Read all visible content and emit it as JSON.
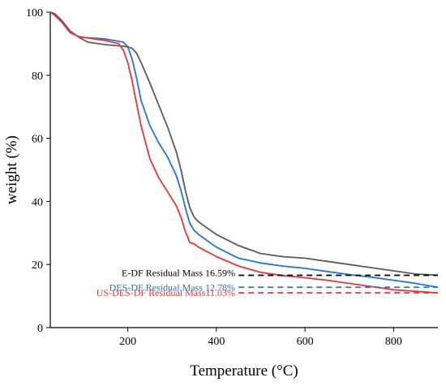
{
  "chart_data": {
    "type": "line",
    "xlabel": "Temperature (°C)",
    "ylabel": "weight (%)",
    "xlim": [
      25,
      900
    ],
    "ylim": [
      0,
      100
    ],
    "x_ticks": [
      200,
      400,
      600,
      800
    ],
    "y_ticks": [
      0,
      20,
      40,
      60,
      80,
      100
    ],
    "grid": false,
    "series": [
      {
        "color": "#5a5a5a",
        "x": [
          25,
          35,
          50,
          70,
          90,
          110,
          150,
          190,
          200,
          210,
          220,
          230,
          250,
          270,
          290,
          310,
          320,
          330,
          340,
          350,
          360,
          380,
          400,
          450,
          500,
          550,
          600,
          650,
          700,
          750,
          800,
          850,
          900
        ],
        "y": [
          100,
          99.5,
          97.5,
          94,
          92,
          90.5,
          89.7,
          89.2,
          89.0,
          88.5,
          87.0,
          84.0,
          77.5,
          70.5,
          63.5,
          55.5,
          50.0,
          43.5,
          38.0,
          35.0,
          33.5,
          31.5,
          29.5,
          26.0,
          23.5,
          22.5,
          22.0,
          21.0,
          20.0,
          19.0,
          18.0,
          17.0,
          16.6
        ]
      },
      {
        "color": "#1f74dc",
        "x": [
          25,
          35,
          50,
          70,
          90,
          100,
          150,
          190,
          200,
          210,
          220,
          230,
          250,
          270,
          290,
          310,
          320,
          330,
          340,
          350,
          360,
          380,
          400,
          450,
          500,
          550,
          600,
          650,
          700,
          750,
          800,
          850,
          900
        ],
        "y": [
          100,
          99.0,
          97.0,
          93.5,
          92.2,
          92.0,
          91.5,
          90.5,
          89.0,
          85.0,
          79.0,
          72.0,
          64.0,
          58.5,
          54.0,
          48.0,
          43.5,
          38.0,
          33.0,
          30.8,
          29.5,
          27.5,
          25.5,
          22.0,
          20.5,
          19.5,
          18.8,
          17.8,
          16.8,
          16.0,
          15.0,
          14.0,
          12.8
        ]
      },
      {
        "color": "#ee3333",
        "x": [
          25,
          35,
          50,
          70,
          90,
          100,
          150,
          180,
          190,
          200,
          210,
          220,
          230,
          250,
          270,
          290,
          310,
          320,
          330,
          340,
          350,
          360,
          380,
          400,
          450,
          500,
          550,
          600,
          650,
          700,
          750,
          800,
          850,
          900
        ],
        "y": [
          100,
          99.0,
          97.0,
          93.5,
          92.2,
          92.0,
          91.0,
          90.0,
          88.0,
          84.0,
          78.0,
          71.0,
          64.0,
          53.5,
          47.5,
          43.0,
          38.5,
          35.0,
          30.5,
          27.0,
          26.5,
          25.5,
          24.0,
          22.5,
          19.5,
          17.5,
          16.5,
          15.8,
          15.0,
          14.0,
          13.0,
          12.0,
          11.5,
          11.0
        ]
      }
    ],
    "annotations": [
      {
        "text": "E-DF Residual Mass 16.59%",
        "color": "#000000",
        "y": 16.59,
        "dash_from": 450
      },
      {
        "text": "DES-DF Residual Mass  12.78%",
        "color": "#1f74dc",
        "y": 12.78,
        "dash_from": 450
      },
      {
        "text": "US-DES-DF  Residual Mass11.03%",
        "color": "#ee3333",
        "y": 11.03,
        "dash_from": 450
      }
    ]
  }
}
